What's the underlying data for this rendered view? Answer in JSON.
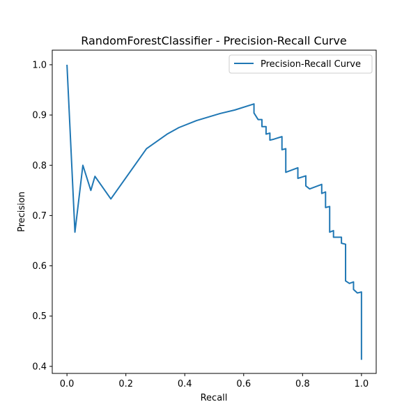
{
  "chart_data": {
    "type": "line",
    "title": "RandomForestClassifier - Precision-Recall Curve",
    "xlabel": "Recall",
    "ylabel": "Precision",
    "xlim": [
      -0.05,
      1.05
    ],
    "ylim": [
      0.386,
      1.029
    ],
    "x_ticks": [
      "0.0",
      "0.2",
      "0.4",
      "0.6",
      "0.8",
      "1.0"
    ],
    "y_ticks": [
      "0.4",
      "0.5",
      "0.6",
      "0.7",
      "0.8",
      "0.9",
      "1.0"
    ],
    "grid": false,
    "legend_position": "upper right",
    "series": [
      {
        "name": "Precision-Recall Curve",
        "color": "#1f77b4",
        "x": [
          0.0,
          0.027,
          0.054,
          0.081,
          0.095,
          0.149,
          0.27,
          0.34,
          0.38,
          0.44,
          0.52,
          0.57,
          0.635,
          0.635,
          0.649,
          0.662,
          0.662,
          0.676,
          0.676,
          0.689,
          0.689,
          0.703,
          0.73,
          0.73,
          0.743,
          0.743,
          0.784,
          0.784,
          0.811,
          0.811,
          0.824,
          0.865,
          0.865,
          0.878,
          0.878,
          0.892,
          0.892,
          0.905,
          0.905,
          0.932,
          0.932,
          0.946,
          0.946,
          0.959,
          0.973,
          0.973,
          0.986,
          1.0,
          1.0
        ],
        "y": [
          1.0,
          0.667,
          0.8,
          0.75,
          0.778,
          0.733,
          0.833,
          0.862,
          0.875,
          0.889,
          0.903,
          0.91,
          0.922,
          0.904,
          0.891,
          0.891,
          0.877,
          0.877,
          0.862,
          0.864,
          0.85,
          0.852,
          0.857,
          0.831,
          0.833,
          0.786,
          0.795,
          0.774,
          0.779,
          0.759,
          0.753,
          0.762,
          0.744,
          0.747,
          0.716,
          0.718,
          0.667,
          0.67,
          0.657,
          0.657,
          0.645,
          0.643,
          0.57,
          0.565,
          0.568,
          0.553,
          0.546,
          0.548,
          0.413
        ]
      }
    ]
  }
}
